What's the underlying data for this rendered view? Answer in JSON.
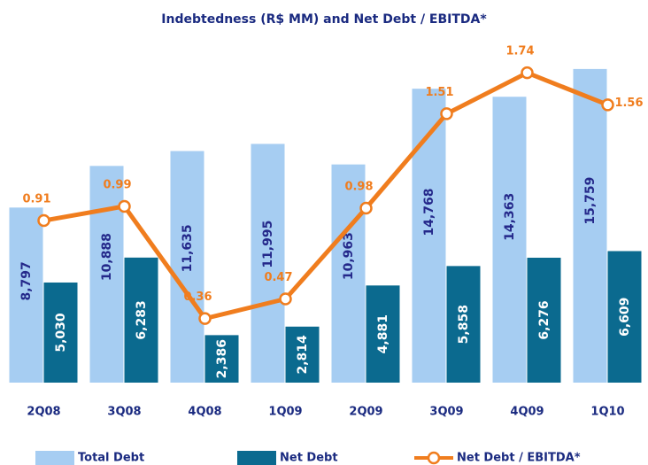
{
  "chart_data": {
    "type": "bar",
    "title": "Indebtedness (R$ MM) and Net Debt / EBITDA*",
    "categories": [
      "2Q08",
      "3Q08",
      "4Q08",
      "1Q09",
      "2Q09",
      "3Q09",
      "4Q09",
      "1Q10"
    ],
    "ylim": [
      0,
      17000
    ],
    "y2lim": [
      0,
      1.9
    ],
    "grid": false,
    "legend": "bottom",
    "series": [
      {
        "name": "Total Debt",
        "color": "#a6cdf2",
        "label_color": "#24288a",
        "values": [
          8797,
          10888,
          11635,
          11995,
          10963,
          14768,
          14363,
          15759
        ],
        "value_labels": [
          "8,797",
          "10,888",
          "11,635",
          "11,995",
          "10,963",
          "14,768",
          "14,363",
          "15,759"
        ]
      },
      {
        "name": "Net Debt",
        "color": "#0b6a8f",
        "label_color": "#ffffff",
        "values": [
          5030,
          6283,
          2386,
          2814,
          4881,
          5858,
          6276,
          6609
        ],
        "value_labels": [
          "5,030",
          "6,283",
          "2,386",
          "2,814",
          "4,881",
          "5,858",
          "6,276",
          "6,609"
        ]
      },
      {
        "name": "Net Debt / EBITDA*",
        "color": "#f07d1e",
        "type": "line",
        "axis": "y2",
        "values": [
          0.91,
          0.99,
          0.36,
          0.47,
          0.98,
          1.51,
          1.74,
          1.56
        ]
      }
    ]
  }
}
